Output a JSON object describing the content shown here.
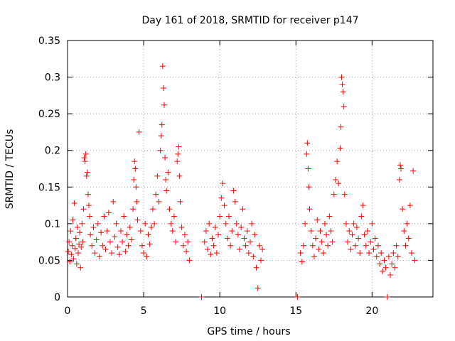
{
  "chart_data": {
    "type": "scatter",
    "title": "Day 161 of 2018, SRMTID for receiver p147",
    "xlabel": "GPS time / hours",
    "ylabel": "SRMTID / TECUs",
    "xlim": [
      0,
      24
    ],
    "ylim": [
      0,
      0.35
    ],
    "x_ticks": [
      0,
      5,
      10,
      15,
      20
    ],
    "x_tick_labels": [
      "0",
      "5",
      "10",
      "15",
      "20"
    ],
    "y_ticks": [
      0,
      0.05,
      0.1,
      0.15,
      0.2,
      0.25,
      0.3,
      0.35
    ],
    "y_tick_labels": [
      "0",
      "0.05",
      "0.1",
      "0.15",
      "0.2",
      "0.25",
      "0.3",
      "0.35"
    ],
    "grid": true,
    "marker": "+",
    "color": "#ff0000",
    "series": [
      {
        "name": "SRMTID",
        "points": [
          [
            0.05,
            0.062
          ],
          [
            0.1,
            0.075
          ],
          [
            0.15,
            0.048
          ],
          [
            0.2,
            0.09
          ],
          [
            0.25,
            0.058
          ],
          [
            0.3,
            0.07
          ],
          [
            0.35,
            0.105
          ],
          [
            0.4,
            0.052
          ],
          [
            0.45,
            0.128
          ],
          [
            0.5,
            0.066
          ],
          [
            0.55,
            0.08
          ],
          [
            0.6,
            0.045
          ],
          [
            0.65,
            0.095
          ],
          [
            0.7,
            0.06
          ],
          [
            0.75,
            0.072
          ],
          [
            0.8,
            0.088
          ],
          [
            0.85,
            0.04
          ],
          [
            0.9,
            0.068
          ],
          [
            0.95,
            0.1
          ],
          [
            1.0,
            0.075
          ],
          [
            1.05,
            0.12
          ],
          [
            1.1,
            0.19
          ],
          [
            1.15,
            0.185
          ],
          [
            1.2,
            0.195
          ],
          [
            1.25,
            0.165
          ],
          [
            1.3,
            0.17
          ],
          [
            1.35,
            0.14
          ],
          [
            1.4,
            0.125
          ],
          [
            1.45,
            0.11
          ],
          [
            1.5,
            0.085
          ],
          [
            1.6,
            0.07
          ],
          [
            1.7,
            0.095
          ],
          [
            1.8,
            0.06
          ],
          [
            1.9,
            0.078
          ],
          [
            2.0,
            0.1
          ],
          [
            2.1,
            0.055
          ],
          [
            2.2,
            0.088
          ],
          [
            2.3,
            0.07
          ],
          [
            2.4,
            0.11
          ],
          [
            2.5,
            0.065
          ],
          [
            2.6,
            0.09
          ],
          [
            2.7,
            0.115
          ],
          [
            2.8,
            0.075
          ],
          [
            2.9,
            0.06
          ],
          [
            3.0,
            0.13
          ],
          [
            3.1,
            0.082
          ],
          [
            3.2,
            0.1
          ],
          [
            3.3,
            0.068
          ],
          [
            3.4,
            0.058
          ],
          [
            3.5,
            0.09
          ],
          [
            3.6,
            0.075
          ],
          [
            3.7,
            0.11
          ],
          [
            3.8,
            0.062
          ],
          [
            3.9,
            0.085
          ],
          [
            4.0,
            0.07
          ],
          [
            4.1,
            0.095
          ],
          [
            4.2,
            0.078
          ],
          [
            4.3,
            0.12
          ],
          [
            4.35,
            0.16
          ],
          [
            4.4,
            0.185
          ],
          [
            4.45,
            0.175
          ],
          [
            4.5,
            0.15
          ],
          [
            4.55,
            0.13
          ],
          [
            4.6,
            0.105
          ],
          [
            4.7,
            0.225
          ],
          [
            4.8,
            0.09
          ],
          [
            4.9,
            0.07
          ],
          [
            5.0,
            0.06
          ],
          [
            5.1,
            0.1
          ],
          [
            5.2,
            0.055
          ],
          [
            5.3,
            0.085
          ],
          [
            5.4,
            0.072
          ],
          [
            5.5,
            0.095
          ],
          [
            5.6,
            0.12
          ],
          [
            5.7,
            0.1
          ],
          [
            5.8,
            0.14
          ],
          [
            5.9,
            0.165
          ],
          [
            6.0,
            0.13
          ],
          [
            6.1,
            0.2
          ],
          [
            6.15,
            0.22
          ],
          [
            6.2,
            0.235
          ],
          [
            6.25,
            0.315
          ],
          [
            6.3,
            0.285
          ],
          [
            6.35,
            0.262
          ],
          [
            6.4,
            0.19
          ],
          [
            6.45,
            0.16
          ],
          [
            6.5,
            0.145
          ],
          [
            6.6,
            0.17
          ],
          [
            6.7,
            0.12
          ],
          [
            6.8,
            0.1
          ],
          [
            6.9,
            0.09
          ],
          [
            7.0,
            0.11
          ],
          [
            7.1,
            0.075
          ],
          [
            7.2,
            0.185
          ],
          [
            7.25,
            0.195
          ],
          [
            7.3,
            0.205
          ],
          [
            7.35,
            0.165
          ],
          [
            7.4,
            0.13
          ],
          [
            7.5,
            0.095
          ],
          [
            7.6,
            0.07
          ],
          [
            7.7,
            0.085
          ],
          [
            7.8,
            0.062
          ],
          [
            7.9,
            0.075
          ],
          [
            8.0,
            0.05
          ],
          [
            8.8,
            0.0
          ],
          [
            9.0,
            0.075
          ],
          [
            9.1,
            0.09
          ],
          [
            9.2,
            0.065
          ],
          [
            9.3,
            0.1
          ],
          [
            9.4,
            0.058
          ],
          [
            9.5,
            0.08
          ],
          [
            9.6,
            0.07
          ],
          [
            9.7,
            0.095
          ],
          [
            9.8,
            0.06
          ],
          [
            9.9,
            0.085
          ],
          [
            10.0,
            0.11
          ],
          [
            10.1,
            0.135
          ],
          [
            10.2,
            0.155
          ],
          [
            10.3,
            0.125
          ],
          [
            10.4,
            0.1
          ],
          [
            10.5,
            0.08
          ],
          [
            10.6,
            0.11
          ],
          [
            10.7,
            0.07
          ],
          [
            10.8,
            0.09
          ],
          [
            10.9,
            0.145
          ],
          [
            11.0,
            0.13
          ],
          [
            11.1,
            0.1
          ],
          [
            11.2,
            0.085
          ],
          [
            11.3,
            0.065
          ],
          [
            11.4,
            0.095
          ],
          [
            11.5,
            0.12
          ],
          [
            11.6,
            0.08
          ],
          [
            11.7,
            0.07
          ],
          [
            11.8,
            0.09
          ],
          [
            11.9,
            0.06
          ],
          [
            12.0,
            0.075
          ],
          [
            12.1,
            0.1
          ],
          [
            12.2,
            0.055
          ],
          [
            12.3,
            0.085
          ],
          [
            12.4,
            0.04
          ],
          [
            12.5,
            0.012
          ],
          [
            12.6,
            0.07
          ],
          [
            12.7,
            0.05
          ],
          [
            12.8,
            0.065
          ],
          [
            15.1,
            0.0
          ],
          [
            15.3,
            0.06
          ],
          [
            15.4,
            0.048
          ],
          [
            15.5,
            0.07
          ],
          [
            15.6,
            0.1
          ],
          [
            15.7,
            0.195
          ],
          [
            15.75,
            0.21
          ],
          [
            15.8,
            0.175
          ],
          [
            15.85,
            0.15
          ],
          [
            15.9,
            0.12
          ],
          [
            16.0,
            0.09
          ],
          [
            16.1,
            0.07
          ],
          [
            16.2,
            0.055
          ],
          [
            16.3,
            0.08
          ],
          [
            16.4,
            0.105
          ],
          [
            16.5,
            0.065
          ],
          [
            16.6,
            0.09
          ],
          [
            16.7,
            0.075
          ],
          [
            16.8,
            0.06
          ],
          [
            16.9,
            0.1
          ],
          [
            17.0,
            0.085
          ],
          [
            17.1,
            0.07
          ],
          [
            17.2,
            0.11
          ],
          [
            17.3,
            0.09
          ],
          [
            17.4,
            0.075
          ],
          [
            17.5,
            0.14
          ],
          [
            17.6,
            0.16
          ],
          [
            17.7,
            0.185
          ],
          [
            17.8,
            0.155
          ],
          [
            17.9,
            0.203
          ],
          [
            17.95,
            0.232
          ],
          [
            18.0,
            0.3
          ],
          [
            18.05,
            0.29
          ],
          [
            18.1,
            0.28
          ],
          [
            18.15,
            0.26
          ],
          [
            18.2,
            0.14
          ],
          [
            18.3,
            0.1
          ],
          [
            18.4,
            0.075
          ],
          [
            18.5,
            0.09
          ],
          [
            18.6,
            0.065
          ],
          [
            18.7,
            0.085
          ],
          [
            18.8,
            0.1
          ],
          [
            18.9,
            0.07
          ],
          [
            19.0,
            0.095
          ],
          [
            19.1,
            0.08
          ],
          [
            19.2,
            0.06
          ],
          [
            19.3,
            0.11
          ],
          [
            19.4,
            0.125
          ],
          [
            19.5,
            0.085
          ],
          [
            19.6,
            0.07
          ],
          [
            19.7,
            0.09
          ],
          [
            19.8,
            0.06
          ],
          [
            19.9,
            0.075
          ],
          [
            20.0,
            0.1
          ],
          [
            20.1,
            0.065
          ],
          [
            20.2,
            0.08
          ],
          [
            20.3,
            0.055
          ],
          [
            20.4,
            0.07
          ],
          [
            20.5,
            0.045
          ],
          [
            20.6,
            0.06
          ],
          [
            20.7,
            0.035
          ],
          [
            20.8,
            0.05
          ],
          [
            20.9,
            0.04
          ],
          [
            21.0,
            0.0
          ],
          [
            21.1,
            0.055
          ],
          [
            21.2,
            0.03
          ],
          [
            21.3,
            0.045
          ],
          [
            21.4,
            0.06
          ],
          [
            21.5,
            0.04
          ],
          [
            21.6,
            0.07
          ],
          [
            21.7,
            0.055
          ],
          [
            21.8,
            0.16
          ],
          [
            21.85,
            0.18
          ],
          [
            21.9,
            0.175
          ],
          [
            22.0,
            0.12
          ],
          [
            22.1,
            0.09
          ],
          [
            22.2,
            0.07
          ],
          [
            22.3,
            0.1
          ],
          [
            22.4,
            0.08
          ],
          [
            22.5,
            0.125
          ],
          [
            22.6,
            0.06
          ],
          [
            22.7,
            0.172
          ],
          [
            22.8,
            0.05
          ]
        ]
      }
    ]
  }
}
